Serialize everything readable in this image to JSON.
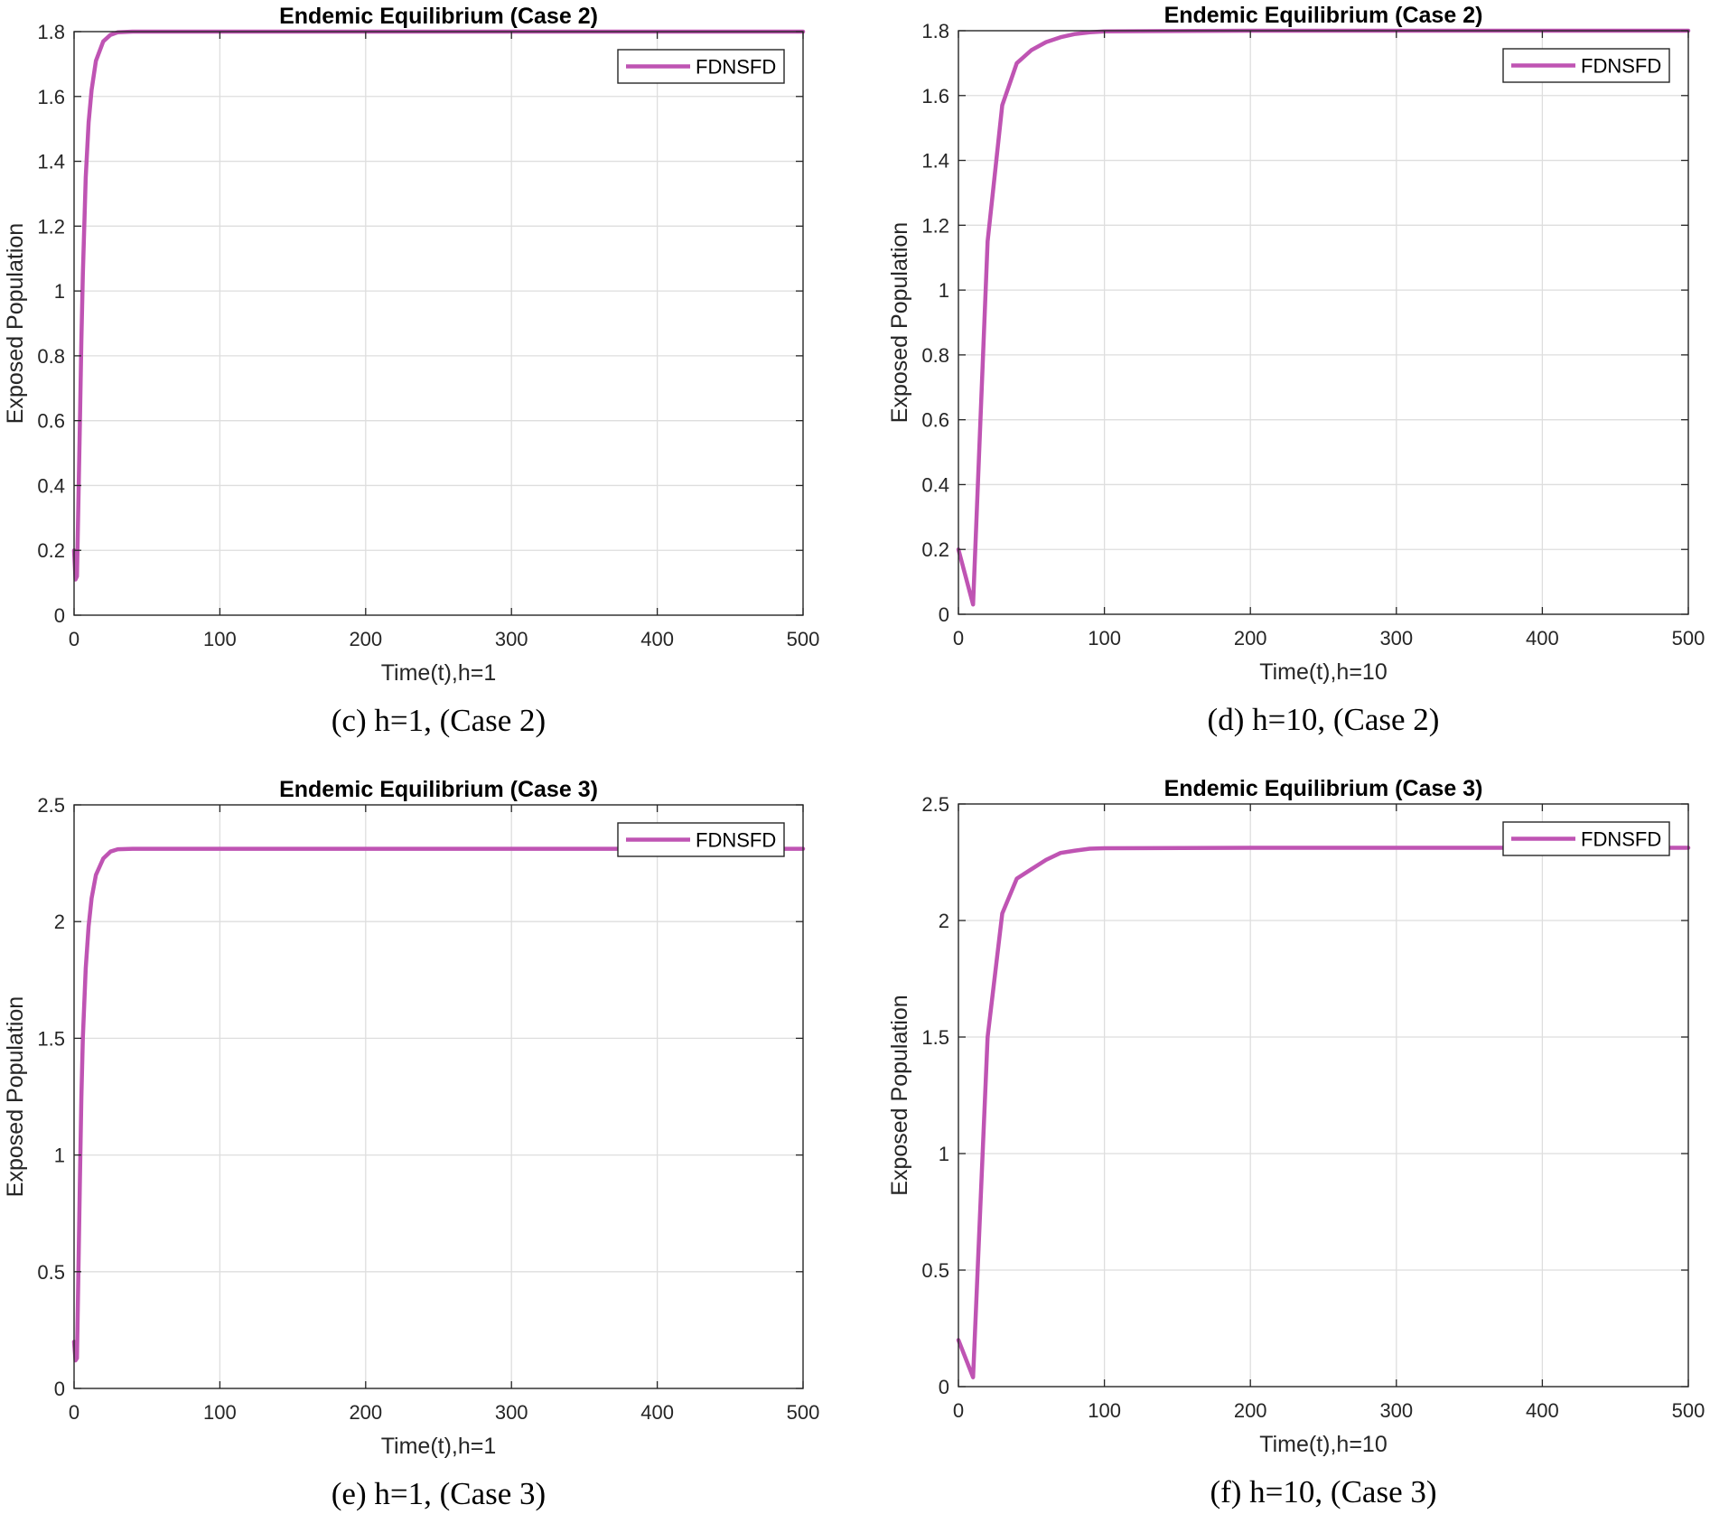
{
  "colors": {
    "series": "#bf54b3",
    "axis": "#262626",
    "grid": "#dedede"
  },
  "chart_data": [
    {
      "id": "c",
      "type": "line",
      "title": "Endemic Equilibrium (Case 2)",
      "xlabel": "Time(t),h=1",
      "ylabel": "Exposed Population",
      "xlim": [
        0,
        500
      ],
      "ylim": [
        0,
        1.8
      ],
      "xticks": [
        0,
        100,
        200,
        300,
        400,
        500
      ],
      "yticks": [
        0,
        0.2,
        0.4,
        0.6,
        0.8,
        1,
        1.2,
        1.4,
        1.6,
        1.8
      ],
      "ytick_labels": [
        "0",
        "0.2",
        "0.4",
        "0.6",
        "0.8",
        "1",
        "1.2",
        "1.4",
        "1.6",
        "1.8"
      ],
      "grid": true,
      "legend": {
        "entries": [
          "FDNSFD"
        ],
        "position": "top-right"
      },
      "caption": "(c) h=1, (Case 2)",
      "series": [
        {
          "name": "FDNSFD",
          "x": [
            0,
            1,
            2,
            3,
            4,
            5,
            6,
            8,
            10,
            12,
            15,
            20,
            25,
            30,
            40,
            50,
            100,
            200,
            300,
            400,
            500
          ],
          "values": [
            0.2,
            0.11,
            0.12,
            0.35,
            0.6,
            0.85,
            1.05,
            1.35,
            1.52,
            1.62,
            1.71,
            1.77,
            1.79,
            1.798,
            1.8,
            1.8,
            1.8,
            1.8,
            1.8,
            1.8,
            1.8
          ]
        }
      ]
    },
    {
      "id": "d",
      "type": "line",
      "title": "Endemic Equilibrium (Case 2)",
      "xlabel": "Time(t),h=10",
      "ylabel": "Exposed Population",
      "xlim": [
        0,
        500
      ],
      "ylim": [
        0,
        1.8
      ],
      "xticks": [
        0,
        100,
        200,
        300,
        400,
        500
      ],
      "yticks": [
        0,
        0.2,
        0.4,
        0.6,
        0.8,
        1,
        1.2,
        1.4,
        1.6,
        1.8
      ],
      "ytick_labels": [
        "0",
        "0.2",
        "0.4",
        "0.6",
        "0.8",
        "1",
        "1.2",
        "1.4",
        "1.6",
        "1.8"
      ],
      "grid": true,
      "legend": {
        "entries": [
          "FDNSFD"
        ],
        "position": "top-right"
      },
      "caption": "(d) h=10, (Case 2)",
      "series": [
        {
          "name": "FDNSFD",
          "x": [
            0,
            10,
            20,
            30,
            40,
            50,
            60,
            70,
            80,
            90,
            100,
            200,
            300,
            400,
            500
          ],
          "values": [
            0.2,
            0.03,
            1.15,
            1.57,
            1.7,
            1.74,
            1.765,
            1.78,
            1.79,
            1.795,
            1.798,
            1.8,
            1.8,
            1.8,
            1.8
          ]
        }
      ]
    },
    {
      "id": "e",
      "type": "line",
      "title": "Endemic Equilibrium (Case 3)",
      "xlabel": "Time(t),h=1",
      "ylabel": "Exposed Population",
      "xlim": [
        0,
        500
      ],
      "ylim": [
        0,
        2.5
      ],
      "xticks": [
        0,
        100,
        200,
        300,
        400,
        500
      ],
      "yticks": [
        0,
        0.5,
        1,
        1.5,
        2,
        2.5
      ],
      "ytick_labels": [
        "0",
        "0.5",
        "1",
        "1.5",
        "2",
        "2.5"
      ],
      "grid": true,
      "legend": {
        "entries": [
          "FDNSFD"
        ],
        "position": "top-right"
      },
      "caption": "(e) h=1, (Case 3)",
      "series": [
        {
          "name": "FDNSFD",
          "x": [
            0,
            1,
            2,
            3,
            4,
            5,
            6,
            8,
            10,
            12,
            15,
            20,
            25,
            30,
            40,
            50,
            100,
            200,
            300,
            400,
            500
          ],
          "values": [
            0.2,
            0.12,
            0.13,
            0.5,
            0.9,
            1.25,
            1.5,
            1.8,
            1.98,
            2.1,
            2.2,
            2.27,
            2.3,
            2.31,
            2.312,
            2.312,
            2.312,
            2.312,
            2.312,
            2.312,
            2.312
          ]
        }
      ]
    },
    {
      "id": "f",
      "type": "line",
      "title": "Endemic Equilibrium (Case 3)",
      "xlabel": "Time(t),h=10",
      "ylabel": "Exposed Population",
      "xlim": [
        0,
        500
      ],
      "ylim": [
        0,
        2.5
      ],
      "xticks": [
        0,
        100,
        200,
        300,
        400,
        500
      ],
      "yticks": [
        0,
        0.5,
        1,
        1.5,
        2,
        2.5
      ],
      "ytick_labels": [
        "0",
        "0.5",
        "1",
        "1.5",
        "2",
        "2.5"
      ],
      "grid": true,
      "legend": {
        "entries": [
          "FDNSFD"
        ],
        "position": "top-right"
      },
      "caption": "(f) h=10, (Case 3)",
      "series": [
        {
          "name": "FDNSFD",
          "x": [
            0,
            10,
            20,
            30,
            40,
            50,
            60,
            70,
            80,
            90,
            100,
            200,
            300,
            400,
            500
          ],
          "values": [
            0.2,
            0.04,
            1.5,
            2.03,
            2.18,
            2.22,
            2.26,
            2.29,
            2.3,
            2.308,
            2.31,
            2.312,
            2.312,
            2.312,
            2.312
          ]
        }
      ]
    }
  ]
}
